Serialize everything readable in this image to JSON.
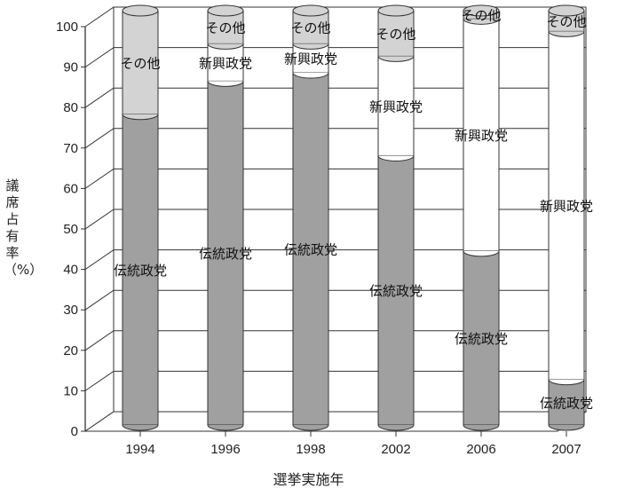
{
  "chart_data": {
    "type": "bar",
    "stacked": true,
    "xlabel": "選挙実施年",
    "ylabel": "議席占有率（%）",
    "ylim": [
      0,
      100
    ],
    "yticks": [
      0,
      10,
      20,
      30,
      40,
      50,
      60,
      70,
      80,
      90,
      100
    ],
    "categories": [
      "1994",
      "1996",
      "1998",
      "2002",
      "2006",
      "2007"
    ],
    "series": [
      {
        "name": "伝統政党",
        "color": "#a0a0a0",
        "values": [
          75,
          83,
          85,
          65,
          42,
          11
        ]
      },
      {
        "name": "新興政党",
        "color": "#ffffff",
        "values": [
          0,
          9,
          7,
          24,
          56,
          84
        ]
      },
      {
        "name": "その他",
        "color": "#d3d3d3",
        "values": [
          25,
          8,
          8,
          11,
          2,
          5
        ]
      }
    ],
    "grid": true
  }
}
